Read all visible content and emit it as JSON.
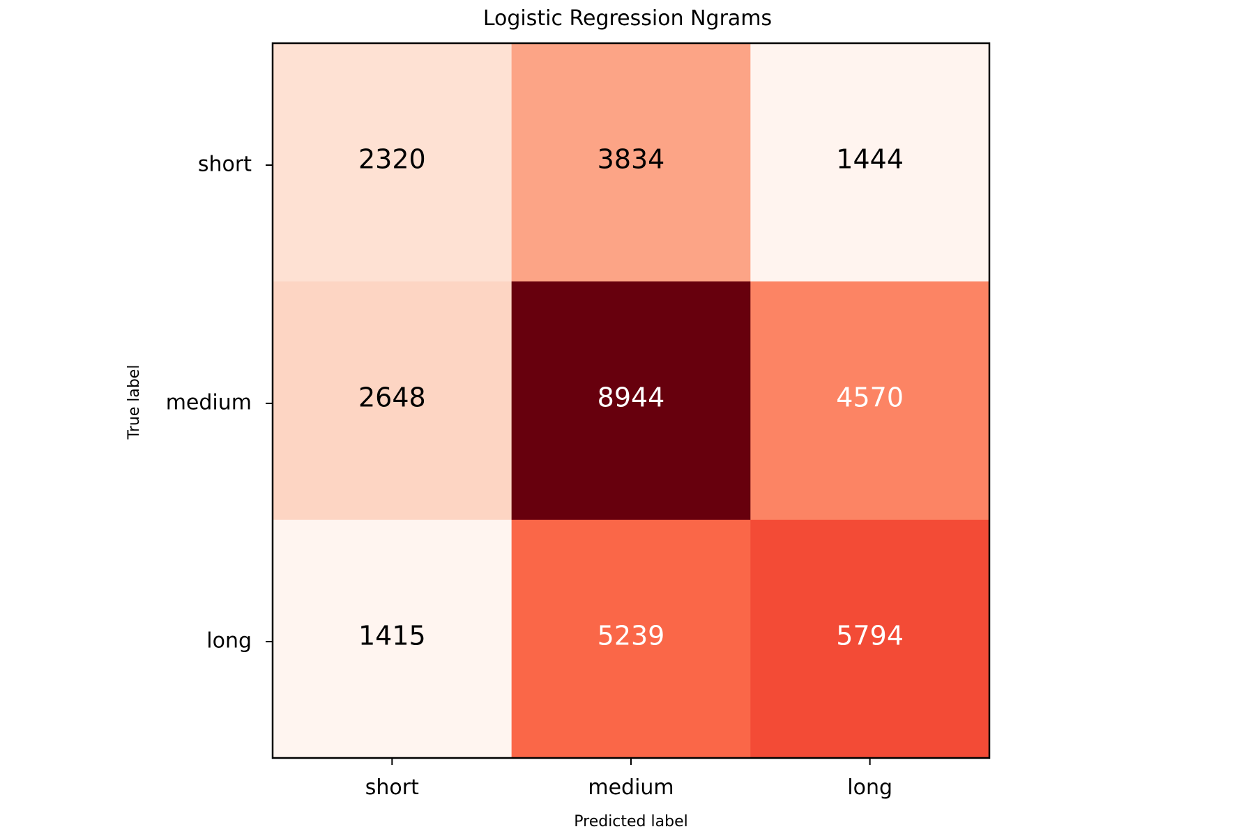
{
  "chart_data": {
    "type": "heatmap",
    "title": "Logistic Regression Ngrams",
    "xlabel": "Predicted label",
    "ylabel": "True label",
    "x_categories": [
      "short",
      "medium",
      "long"
    ],
    "y_categories": [
      "short",
      "medium",
      "long"
    ],
    "values": [
      [
        2320,
        3834,
        1444
      ],
      [
        2648,
        8944,
        4570
      ],
      [
        1415,
        5239,
        5794
      ]
    ],
    "colormap": "Reds",
    "grid": false,
    "legend": "none"
  }
}
